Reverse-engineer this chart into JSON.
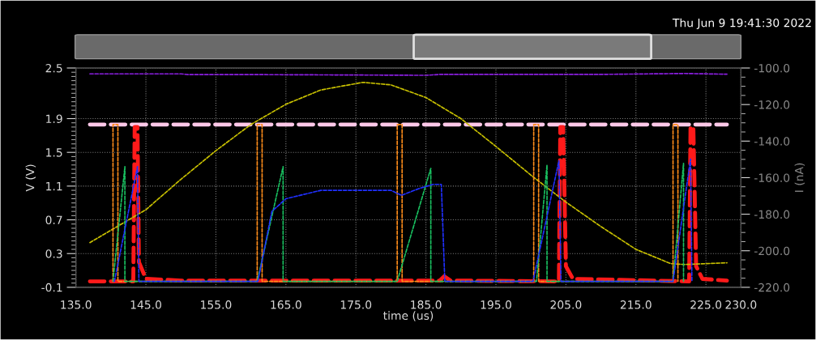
{
  "chart_data": {
    "type": "line",
    "xlabel": "time (us)",
    "ylabel": "V (V)",
    "y2label": "I (nA)",
    "annotations": [
      "Thu Jun 9 19:41:30 2022"
    ],
    "xlim": [
      135,
      230
    ],
    "xticks": [
      {
        "value": 135,
        "label": "135.0"
      },
      {
        "value": 145,
        "label": "145.0"
      },
      {
        "value": 155,
        "label": "155.0"
      },
      {
        "value": 165,
        "label": "165.0"
      },
      {
        "value": 175,
        "label": "175.0"
      },
      {
        "value": 185,
        "label": "185.0"
      },
      {
        "value": 195,
        "label": "195.0"
      },
      {
        "value": 205,
        "label": "205.0"
      },
      {
        "value": 215,
        "label": "215.0"
      },
      {
        "value": 225,
        "label": "225.0"
      },
      {
        "value": 230,
        "label": "230.0"
      }
    ],
    "ylim": [
      -0.1,
      2.5
    ],
    "yticks": [
      -0.1,
      0.3,
      0.7,
      1.1,
      1.5,
      1.9,
      2.5
    ],
    "y2lim": [
      -220,
      -100
    ],
    "y2ticks": [
      {
        "value": -220,
        "label": "-220.0"
      },
      {
        "value": -200,
        "label": "-200.0"
      },
      {
        "value": -180,
        "label": "-180.0"
      },
      {
        "value": -160,
        "label": "-160.0"
      },
      {
        "value": -140,
        "label": "-140.0"
      },
      {
        "value": -120,
        "label": "-120.0"
      },
      {
        "value": -100,
        "label": "-100.0"
      }
    ],
    "grid": true,
    "legend": false,
    "marker": "none",
    "series": [
      {
        "color": "#8a1ee0",
        "axis": "y2",
        "line_style": "dotted",
        "x": [
          137,
          150,
          151,
          160,
          185,
          187,
          200,
          210,
          222,
          228
        ],
        "values": [
          -103.2,
          -103.2,
          -103.6,
          -103.6,
          -104.0,
          -103.5,
          -103.5,
          -103.5,
          -103.0,
          -103.4
        ]
      },
      {
        "color": "#c8c000",
        "line_style": "dotted",
        "x": [
          137,
          145,
          150,
          155,
          160,
          165,
          170,
          176,
          180,
          185,
          190,
          195,
          200,
          205,
          210,
          215,
          220,
          222,
          228
        ],
        "values": [
          0.43,
          0.82,
          1.18,
          1.52,
          1.83,
          2.07,
          2.24,
          2.33,
          2.3,
          2.15,
          1.9,
          1.57,
          1.23,
          0.91,
          0.62,
          0.35,
          0.18,
          0.17,
          0.19
        ]
      },
      {
        "color": "#ff8c1a",
        "line_style": "dotted",
        "x": [
          140.3,
          140.3,
          141.0,
          141.0,
          160.9,
          160.9,
          161.6,
          161.6,
          180.9,
          180.9,
          181.6,
          181.6,
          200.4,
          200.4,
          201.1,
          201.1,
          220.3,
          220.3,
          221.0,
          221.0
        ],
        "values": [
          -0.03,
          1.83,
          1.83,
          -0.03,
          -0.03,
          1.83,
          1.83,
          -0.03,
          -0.03,
          1.83,
          1.83,
          -0.03,
          -0.03,
          1.83,
          1.83,
          -0.03,
          -0.03,
          1.83,
          1.83,
          -0.03
        ]
      },
      {
        "color": "#19c060",
        "line_style": "dotted",
        "x": [
          140.3,
          142.0,
          142.0,
          160.9,
          164.6,
          164.6,
          180.9,
          185.7,
          185.7,
          200.8,
          202.3,
          202.3,
          220.3,
          221.8,
          221.8
        ],
        "values": [
          -0.03,
          1.33,
          -0.03,
          -0.03,
          1.33,
          -0.03,
          -0.03,
          1.31,
          -0.03,
          -0.03,
          1.35,
          -0.03,
          -0.03,
          1.37,
          -0.03
        ]
      },
      {
        "color": "#2030ff",
        "line_style": "dotted",
        "x": [
          140.5,
          143.8,
          144.0,
          161,
          163,
          165,
          170,
          180,
          181.5,
          184,
          186,
          187.2,
          187.7,
          200.3,
          204,
          204.3,
          220.3,
          222.8,
          223
        ],
        "values": [
          -0.03,
          1.33,
          -0.03,
          -0.03,
          0.8,
          0.95,
          1.05,
          1.05,
          0.99,
          1.07,
          1.12,
          1.12,
          -0.03,
          -0.03,
          1.4,
          -0.03,
          -0.03,
          1.42,
          -0.03
        ]
      },
      {
        "color": "#ffc8e8",
        "line_style": "dashed",
        "x": [
          137,
          228
        ],
        "values": [
          1.83,
          1.83
        ]
      },
      {
        "color": "#ff1a1a",
        "line_style": "dashed",
        "x": [
          137,
          143.2,
          143.4,
          143.8,
          144.0,
          145,
          150,
          187,
          187.6,
          188.5,
          204.0,
          204.2,
          204.6,
          205.0,
          206,
          222.6,
          222.8,
          223.2,
          223.6,
          224.5,
          228
        ],
        "values": [
          -0.03,
          -0.03,
          1.8,
          1.8,
          0.2,
          0.0,
          -0.02,
          -0.02,
          0.03,
          -0.02,
          -0.03,
          1.8,
          1.8,
          0.15,
          0.0,
          -0.03,
          1.8,
          1.8,
          0.15,
          0.0,
          -0.02
        ]
      }
    ]
  }
}
